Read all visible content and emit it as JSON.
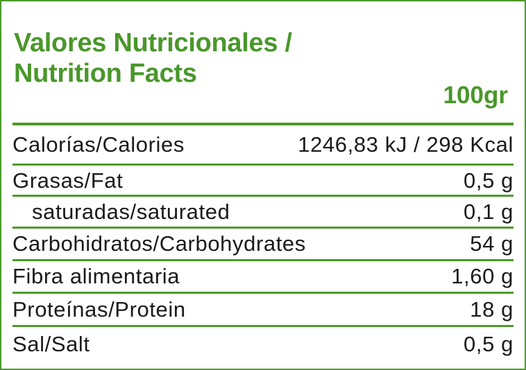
{
  "title_line1": "Valores Nutricionales /",
  "title_line2": "Nutrition Facts",
  "per_label": "100gr",
  "accent_color": "#4c9a2a",
  "rows": [
    {
      "label": "Calorías/Calories",
      "value": "1246,83 kJ / 298 Kcal"
    },
    {
      "label": "Grasas/Fat",
      "value": "0,5 g"
    },
    {
      "label": "saturadas/saturated",
      "value": "0,1 g"
    },
    {
      "label": "Carbohidratos/Carbohydrates",
      "value": "54 g"
    },
    {
      "label": "Fibra alimentaria",
      "value": "1,60 g"
    },
    {
      "label": "Proteínas/Protein",
      "value": "18 g"
    },
    {
      "label": "Sal/Salt",
      "value": "0,5 g"
    }
  ]
}
